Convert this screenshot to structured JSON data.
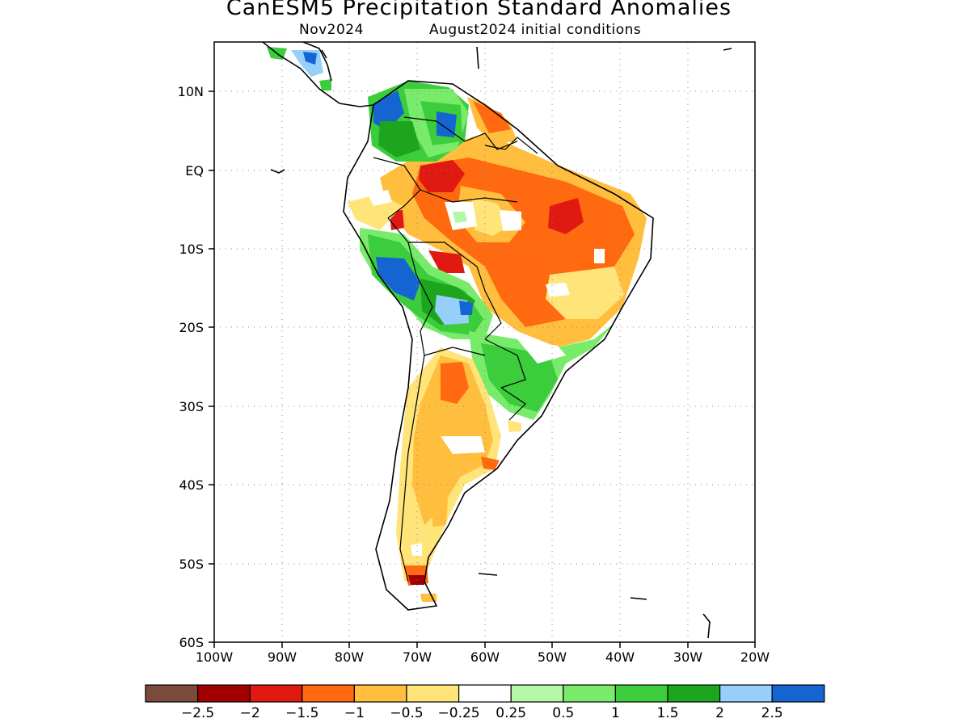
{
  "title": "CanESM5 Precipitation Standard Anomalies",
  "subtitle_left": "Nov2024",
  "subtitle_right": "August2024 initial conditions",
  "map": {
    "lon_ticks": [
      "100W",
      "90W",
      "80W",
      "70W",
      "60W",
      "50W",
      "40W",
      "30W",
      "20W"
    ],
    "lat_ticks": [
      "10N",
      "EQ",
      "10S",
      "20S",
      "30S",
      "40S",
      "50S",
      "60S"
    ],
    "lon_range": [
      -100,
      -20
    ],
    "lat_range": [
      -60,
      16
    ],
    "grid": "dotted"
  },
  "colorbar": {
    "colors": [
      "#7a4a3a",
      "#a00000",
      "#e01a10",
      "#ff6a10",
      "#ffbe3e",
      "#ffe47a",
      "#ffffff",
      "#b4f7a6",
      "#78ec6a",
      "#3ccd3c",
      "#1ea51e",
      "#96d0fa",
      "#1464d2"
    ],
    "labels": [
      "-2.5",
      "-2",
      "-1.5",
      "-1",
      "-0.5",
      "-0.25",
      "0.25",
      "0.5",
      "1",
      "1.5",
      "2",
      "2.5"
    ]
  }
}
